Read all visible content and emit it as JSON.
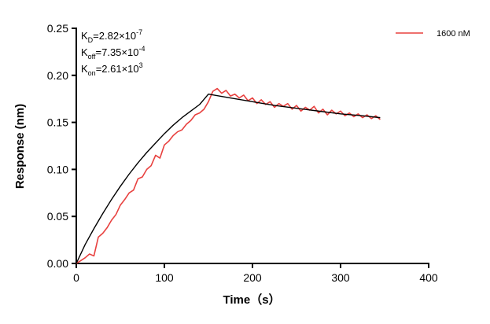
{
  "chart_data": {
    "type": "line",
    "x_label": "Time（s）",
    "y_label": "Response (nm)",
    "annotations": [
      {
        "symbol": "K",
        "sub": "D",
        "text": "=2.82×10",
        "sup": "-7"
      },
      {
        "symbol": "K",
        "sub": "off",
        "text": "=7.35×10",
        "sup": "-4"
      },
      {
        "symbol": "K",
        "sub": "on",
        "text": "=2.61×10",
        "sup": "3"
      }
    ],
    "xlim": [
      0,
      400
    ],
    "xticks": [
      0,
      100,
      200,
      300,
      400
    ],
    "ylim": [
      0,
      0.25
    ],
    "yticks": [
      {
        "value": 0,
        "label": "0.00"
      },
      {
        "value": 0.05,
        "label": "0.05"
      },
      {
        "value": 0.1,
        "label": "0.10"
      },
      {
        "value": 0.15,
        "label": "0.15"
      },
      {
        "value": 0.2,
        "label": "0.20"
      },
      {
        "value": 0.25,
        "label": "0.25"
      }
    ],
    "legend": "top-right",
    "series": [
      {
        "name": "1600 nM",
        "color": "#e8413f",
        "x": [
          0,
          5,
          10,
          15,
          20,
          25,
          30,
          35,
          40,
          45,
          50,
          55,
          60,
          65,
          70,
          75,
          80,
          85,
          90,
          95,
          100,
          105,
          110,
          115,
          120,
          125,
          130,
          135,
          140,
          145,
          150,
          155,
          160,
          165,
          170,
          175,
          180,
          185,
          190,
          195,
          200,
          205,
          210,
          215,
          220,
          225,
          230,
          235,
          240,
          245,
          250,
          255,
          260,
          265,
          270,
          275,
          280,
          285,
          290,
          295,
          300,
          305,
          310,
          315,
          320,
          325,
          330,
          335,
          340,
          345
        ],
        "values": [
          0.0,
          0.003,
          0.006,
          0.01,
          0.008,
          0.028,
          0.032,
          0.038,
          0.046,
          0.052,
          0.062,
          0.068,
          0.075,
          0.078,
          0.09,
          0.092,
          0.1,
          0.104,
          0.115,
          0.112,
          0.126,
          0.13,
          0.136,
          0.14,
          0.142,
          0.148,
          0.152,
          0.158,
          0.16,
          0.164,
          0.172,
          0.183,
          0.186,
          0.181,
          0.184,
          0.178,
          0.18,
          0.176,
          0.179,
          0.173,
          0.176,
          0.17,
          0.174,
          0.169,
          0.172,
          0.166,
          0.17,
          0.167,
          0.17,
          0.164,
          0.168,
          0.162,
          0.166,
          0.163,
          0.167,
          0.16,
          0.164,
          0.158,
          0.163,
          0.159,
          0.162,
          0.157,
          0.16,
          0.156,
          0.159,
          0.155,
          0.158,
          0.154,
          0.157,
          0.153
        ]
      },
      {
        "color": "#000000",
        "x": [
          0,
          10,
          20,
          30,
          40,
          50,
          60,
          70,
          80,
          90,
          100,
          110,
          120,
          130,
          140,
          150,
          175,
          200,
          225,
          250,
          275,
          300,
          325,
          345
        ],
        "values": [
          0,
          0.02,
          0.037,
          0.053,
          0.068,
          0.082,
          0.095,
          0.107,
          0.118,
          0.128,
          0.138,
          0.147,
          0.155,
          0.162,
          0.169,
          0.18,
          0.176,
          0.172,
          0.168,
          0.165,
          0.162,
          0.159,
          0.157,
          0.155
        ]
      }
    ]
  }
}
